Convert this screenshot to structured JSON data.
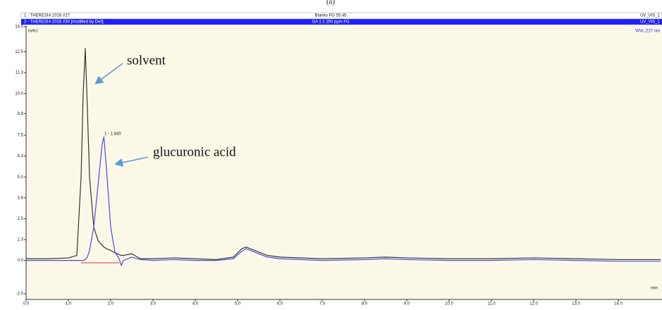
{
  "chart_data": {
    "type": "line",
    "caption": "(a)",
    "header_rows": [
      {
        "left": "1 - THERESIA 2016 #27",
        "center": "Blanko FG 55:45",
        "right": "UV_VIS_1"
      },
      {
        "left": "2 - THERESIA 2016 #30 [modified by Dell]",
        "center": "GA 1:1 250 ppm FG",
        "right": "UV_VIS_1"
      }
    ],
    "y_label": "mAU",
    "wavelength": "WVL:227 nm",
    "x_label": "min",
    "annotations": [
      "solvent",
      "glucuronic acid",
      "1 - 1.840"
    ],
    "x": [
      0,
      0.5,
      1.0,
      1.2,
      1.3,
      1.35,
      1.4,
      1.45,
      1.5,
      1.6,
      1.7,
      1.8,
      1.84,
      1.9,
      2.0,
      2.1,
      2.2,
      2.25,
      2.3,
      2.5,
      2.7,
      3.0,
      3.5,
      4.0,
      4.5,
      4.9,
      5.1,
      5.2,
      5.4,
      5.7,
      6.0,
      7.0,
      8.0,
      8.5,
      9.0,
      10.0,
      11.0,
      12.0,
      13.0,
      14.0,
      15.0
    ],
    "series": [
      {
        "color": "#333333",
        "values": [
          0.1,
          0.1,
          0.15,
          0.3,
          5,
          10,
          12.7,
          9,
          5,
          2.0,
          1.2,
          0.9,
          0.8,
          0.7,
          0.6,
          0.45,
          0.35,
          0.3,
          0.3,
          0.4,
          0.1,
          0.1,
          0.15,
          0.1,
          0.05,
          0.2,
          0.7,
          0.8,
          0.6,
          0.3,
          0.2,
          0.1,
          0.15,
          0.2,
          0.15,
          0.1,
          0.1,
          0.15,
          0.1,
          0.05,
          0.05
        ]
      },
      {
        "color": "#4a4ae8",
        "values": [
          0,
          0,
          0,
          0,
          0,
          0,
          0.05,
          0.2,
          0.6,
          2.0,
          4.5,
          7.0,
          7.4,
          5.5,
          2.0,
          0.5,
          0.1,
          -0.3,
          0,
          0.2,
          0.05,
          0,
          0.05,
          0,
          0,
          0.1,
          0.55,
          0.7,
          0.5,
          0.2,
          0.1,
          0,
          0.05,
          0.1,
          0.05,
          0,
          0,
          0.05,
          0,
          -0.05,
          -0.05
        ]
      }
    ],
    "xlim": [
      0,
      15
    ],
    "xticks": [
      {
        "value": 0,
        "label": "0.0"
      },
      {
        "value": 1,
        "label": "1.0"
      },
      {
        "value": 2,
        "label": "2.0"
      },
      {
        "value": 3,
        "label": "3.0"
      },
      {
        "value": 4,
        "label": "4.0"
      },
      {
        "value": 5,
        "label": "5.0"
      },
      {
        "value": 6,
        "label": "6.0"
      },
      {
        "value": 7,
        "label": "7.0"
      },
      {
        "value": 8,
        "label": "8.0"
      },
      {
        "value": 9,
        "label": "9.0"
      },
      {
        "value": 10,
        "label": "10.0"
      },
      {
        "value": 11,
        "label": "11.0"
      },
      {
        "value": 12,
        "label": "12.0"
      },
      {
        "value": 13,
        "label": "13.0"
      },
      {
        "value": 14,
        "label": "14.0"
      }
    ],
    "ylim": [
      -2,
      14
    ],
    "yticks": [
      {
        "value": -2,
        "label": "-2.0"
      },
      {
        "value": 0,
        "label": "0.0"
      },
      {
        "value": 1.25,
        "label": "1.3"
      },
      2.5,
      {
        "value": 3.75,
        "label": "3.8"
      },
      {
        "value": 5,
        "label": "5.0"
      },
      {
        "value": 6.25,
        "label": "6.3"
      },
      7.5,
      8.8,
      {
        "value": 10,
        "label": "10.0"
      },
      {
        "value": 11.25,
        "label": "11.3"
      },
      12.5,
      {
        "value": 14,
        "label": "14.0"
      }
    ]
  }
}
